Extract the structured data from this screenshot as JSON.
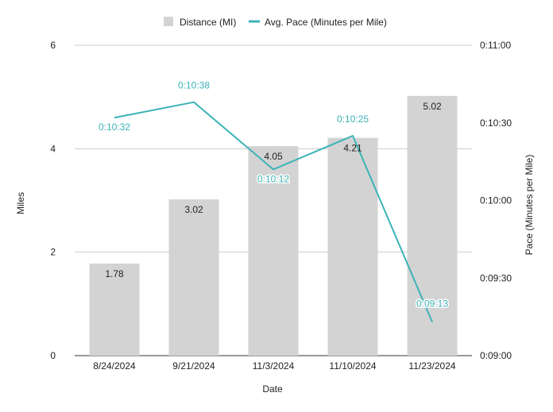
{
  "chart_data": {
    "type": "bar",
    "categories": [
      "8/24/2024",
      "9/21/2024",
      "11/3/2024",
      "11/10/2024",
      "11/23/2024"
    ],
    "series": [
      {
        "name": "Distance (MI)",
        "type": "bar",
        "axis": "left",
        "values": [
          1.78,
          3.02,
          4.05,
          4.21,
          5.02
        ],
        "labels": [
          "1.78",
          "3.02",
          "4.05",
          "4.21",
          "5.02"
        ],
        "color": "#d3d3d3"
      },
      {
        "name": "Avg. Pace (Minutes per Mile)",
        "type": "line",
        "axis": "right",
        "values": [
          632,
          638,
          612,
          625,
          553
        ],
        "labels": [
          "0:10:32",
          "0:10:38",
          "0:10:12",
          "0:10:25",
          "0:09:13"
        ],
        "color": "#3bb3b8"
      }
    ],
    "xlabel": "Date",
    "ylabel": "Miles",
    "ylabel_right": "Pace (Minutes per Mile)",
    "ylim": [
      0,
      6
    ],
    "yticks": [
      "0",
      "2",
      "4",
      "6"
    ],
    "ylim_right": [
      540,
      660
    ],
    "yticks_right": [
      "0:09:00",
      "0:09:30",
      "0:10:00",
      "0:10:30",
      "0:11:00"
    ],
    "grid": true,
    "legend": "top"
  }
}
